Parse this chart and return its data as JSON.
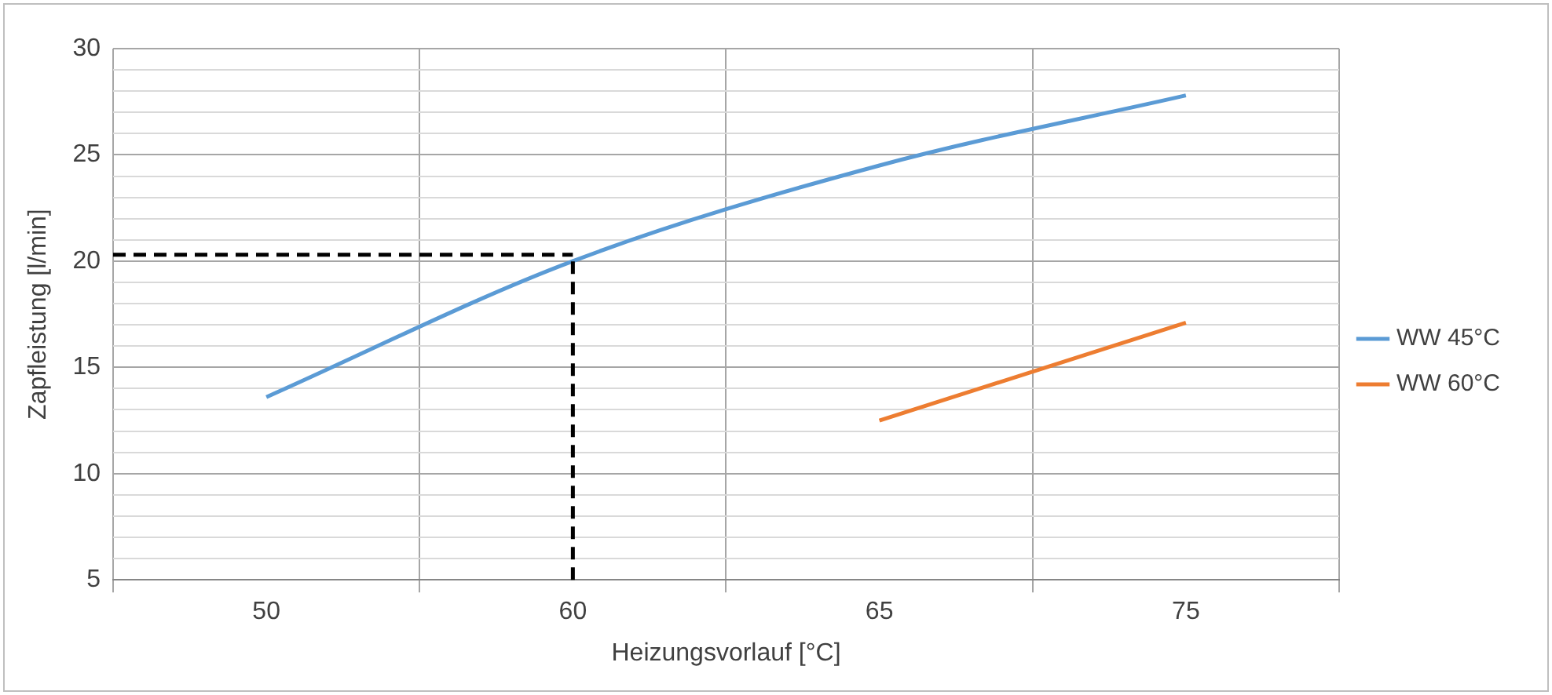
{
  "chart_data": {
    "type": "line",
    "xlabel": "Heizungsvorlauf [°C]",
    "ylabel": "Zapfleistung [l/min]",
    "categories": [
      "50",
      "60",
      "65",
      "75"
    ],
    "series": [
      {
        "name": "WW 45°C",
        "color": "#5b9bd5",
        "values": [
          13.6,
          20.0,
          24.5,
          27.8
        ]
      },
      {
        "name": "WW 60°C",
        "color": "#ed7d31",
        "values": [
          null,
          null,
          12.5,
          17.1
        ]
      }
    ],
    "ylim": [
      5,
      30
    ],
    "yticks": [
      5,
      {
        "value": 6,
        "label": null
      },
      {
        "value": 7,
        "label": null
      },
      {
        "value": 8,
        "label": null
      },
      {
        "value": 9,
        "label": null
      },
      10,
      {
        "value": 11,
        "label": null
      },
      {
        "value": 12,
        "label": null
      },
      {
        "value": 13,
        "label": null
      },
      {
        "value": 14,
        "label": null
      },
      15,
      {
        "value": 16,
        "label": null
      },
      {
        "value": 17,
        "label": null
      },
      {
        "value": 18,
        "label": null
      },
      {
        "value": 19,
        "label": null
      },
      20,
      {
        "value": 21,
        "label": null
      },
      {
        "value": 22,
        "label": null
      },
      {
        "value": 23,
        "label": null
      },
      {
        "value": 24,
        "label": null
      },
      25,
      {
        "value": 26,
        "label": null
      },
      {
        "value": 27,
        "label": null
      },
      {
        "value": 28,
        "label": null
      },
      {
        "value": 29,
        "label": null
      },
      30
    ],
    "ref_lines": [
      {
        "axis": "y",
        "value": 20.3,
        "color": "#000000",
        "line_style": "dashed"
      },
      {
        "axis": "x",
        "value": "60",
        "color": "#000000",
        "line_style": "dashed"
      }
    ],
    "grid": true,
    "legend": "right",
    "marker": "none",
    "line_style": "solid"
  }
}
